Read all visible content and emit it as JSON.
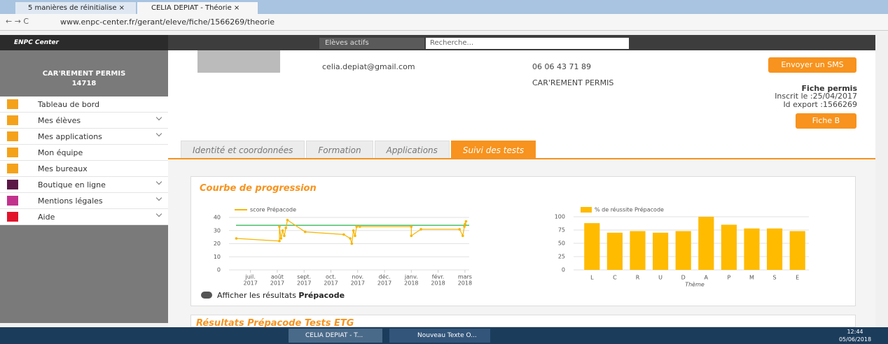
{
  "browser": {
    "tabs": [
      "5 manières de réinitialise",
      "CELIA DEPIAT - Théorie"
    ],
    "url": "www.enpc-center.fr/gerant/eleve/fiche/1566269/theorie"
  },
  "header": {
    "brand": "ENPC Center",
    "filter": "Elèves actifs",
    "search": "Recherche..."
  },
  "sidebar": {
    "school": "CAR'REMENT PERMIS",
    "code": "14718",
    "menu": [
      {
        "label": "Tableau de bord",
        "color": "#f5a21b",
        "submenu": false
      },
      {
        "label": "Mes élèves",
        "color": "#f5a21b",
        "submenu": true
      },
      {
        "label": "Mes applications",
        "color": "#f5a21b",
        "submenu": true
      },
      {
        "label": "Mon équipe",
        "color": "#f5a21b",
        "submenu": false
      },
      {
        "label": "Mes bureaux",
        "color": "#f5a21b",
        "submenu": false
      },
      {
        "label": "Boutique en ligne",
        "color": "#5b1846",
        "submenu": true
      },
      {
        "label": "Mentions légales",
        "color": "#c2328c",
        "submenu": true
      },
      {
        "label": "Aide",
        "color": "#e2142c",
        "submenu": true
      }
    ]
  },
  "student": {
    "email": "celia.depiat@gmail.com",
    "phone": "06 06 43 71 89",
    "school": "CAR'REMENT PERMIS",
    "sms_button": "Envoyer un SMS",
    "fiche_title": "Fiche permis",
    "inscrit": "Inscrit le :25/04/2017",
    "id_export": "Id export :1566269",
    "fiche_button": "Fiche B"
  },
  "tabs": {
    "items": [
      "Identité et coordonnées",
      "Formation",
      "Applications",
      "Suivi des tests"
    ],
    "active": 3
  },
  "panel": {
    "title": "Courbe de progression",
    "toggle_label": "Afficher les résultats",
    "toggle_bold": "Prépacode"
  },
  "next_panel": {
    "title": "Résultats Prépacode Tests ETG"
  },
  "taskbar": {
    "windows": [
      "CELIA DEPIAT - T...",
      "Nouveau Texte O..."
    ],
    "time": "12:44",
    "date": "05/06/2018"
  },
  "chart_data": [
    {
      "type": "line",
      "series": [
        {
          "name": "score Prépacode",
          "color": "#f7b500",
          "x": [
            2017.456,
            2017.59,
            2017.59,
            2017.595,
            2017.6,
            2017.605,
            2017.61,
            2017.615,
            2017.67,
            2017.79,
            2017.81,
            2017.815,
            2017.82,
            2017.825,
            2017.83,
            2017.84,
            2018.0,
            2018.0,
            2018.03,
            2018.15,
            2018.16,
            2018.165,
            2018.167,
            2018.17
          ],
          "values": [
            24,
            22,
            33,
            24,
            30,
            26,
            32,
            38,
            29,
            27,
            24,
            20,
            30,
            26,
            33,
            33,
            33,
            26,
            31,
            31,
            26,
            33,
            35,
            37
          ]
        }
      ],
      "threshold": {
        "value": 34,
        "color": "#4cc06a"
      },
      "xlim": [
        2017.455,
        2018.18
      ],
      "xticks": [
        {
          "value": 2017.5,
          "label": "juil.",
          "year": "2017"
        },
        {
          "value": 2017.5833,
          "label": "août",
          "year": "2017"
        },
        {
          "value": 2017.6667,
          "label": "sept.",
          "year": "2017"
        },
        {
          "value": 2017.75,
          "label": "oct.",
          "year": "2017"
        },
        {
          "value": 2017.8333,
          "label": "nov.",
          "year": "2017"
        },
        {
          "value": 2017.9167,
          "label": "déc.",
          "year": "2017"
        },
        {
          "value": 2018.0,
          "label": "janv.",
          "year": "2018"
        },
        {
          "value": 2018.0833,
          "label": "févr.",
          "year": "2018"
        },
        {
          "value": 2018.1667,
          "label": "mars",
          "year": "2018"
        }
      ],
      "ylim": [
        0,
        40
      ],
      "yticks": [
        0,
        10,
        20,
        30,
        40
      ],
      "grid": true
    },
    {
      "type": "bar",
      "x_label": "Thème",
      "series": [
        {
          "name": "% de réussite Prépacode",
          "color": "#ffbb00",
          "values": [
            88,
            70,
            73,
            70,
            73,
            100,
            85,
            78,
            78,
            73
          ]
        }
      ],
      "categories": [
        "L",
        "C",
        "R",
        "U",
        "D",
        "A",
        "P",
        "M",
        "S",
        "E"
      ],
      "ylim": [
        0,
        100
      ],
      "yticks": [
        0,
        25,
        50,
        75,
        100
      ],
      "grid": true
    }
  ]
}
